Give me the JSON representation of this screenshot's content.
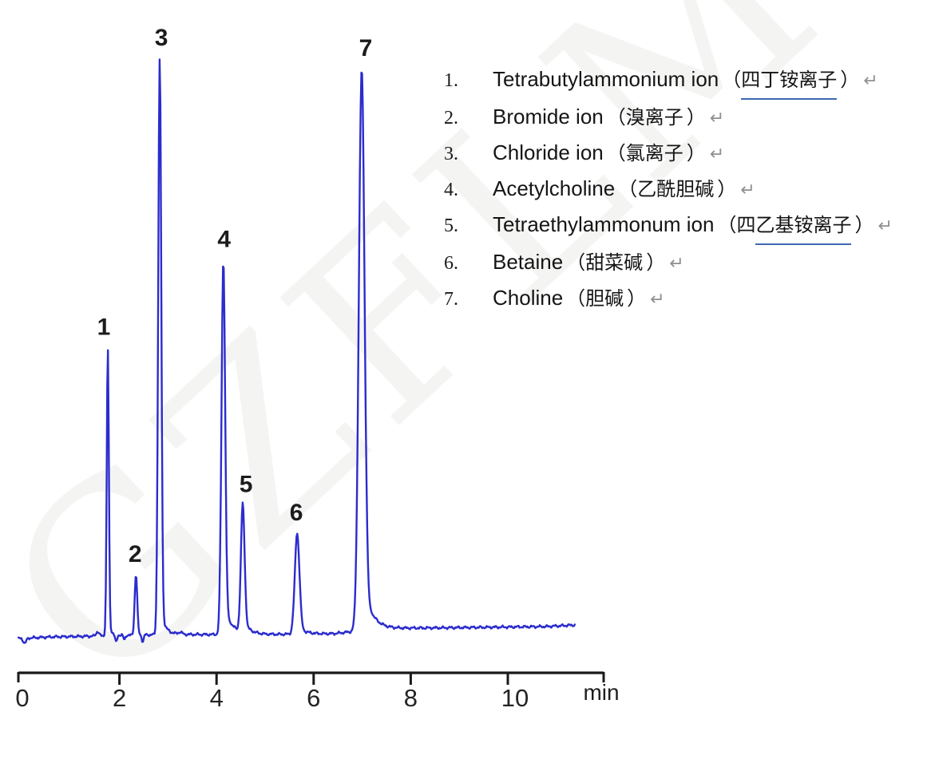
{
  "watermark": {
    "text": "GZFLM"
  },
  "legend": {
    "paren_open": "（",
    "paren_close": "）",
    "return_mark": "↵",
    "items": [
      {
        "num": "1.",
        "en": "Tetrabutylammonium ion",
        "zh_plain": "",
        "zh_underlined": "四丁铵离子"
      },
      {
        "num": "2.",
        "en": "Bromide ion",
        "zh_plain": "溴离子",
        "zh_underlined": ""
      },
      {
        "num": "3.",
        "en": "Chloride ion",
        "zh_plain": "氯离子",
        "zh_underlined": ""
      },
      {
        "num": "4.",
        "en": "Acetylcholine",
        "zh_plain": "乙酰胆碱",
        "zh_underlined": ""
      },
      {
        "num": "5.",
        "en": "Tetraethylammonum ion",
        "zh_plain": "四",
        "zh_underlined": "乙基铵离子"
      },
      {
        "num": "6.",
        "en": "Betaine",
        "zh_plain": "甜菜碱",
        "zh_underlined": ""
      },
      {
        "num": "7.",
        "en": "Choline",
        "zh_plain": "胆碱",
        "zh_underlined": ""
      }
    ]
  },
  "chart_data": {
    "type": "line",
    "title": "",
    "xlabel": "min",
    "ylabel": "",
    "x_ticks": [
      0,
      2,
      4,
      6,
      8,
      10
    ],
    "x_range": [
      -0.1,
      11.4
    ],
    "grid": false,
    "trace_color": "#2b2ccd",
    "axis_color": "#1a1a1a",
    "peak_label_color": "#1c1c1c",
    "series": [
      {
        "name": "conductivity-trace"
      }
    ],
    "peaks": [
      {
        "label": "1",
        "name": "Tetrabutylammonium ion",
        "rt_min": 1.76,
        "rel_height": 50,
        "sigma_min": 0.022,
        "tail_frac": 0.03,
        "tail_tau_min": 0.1
      },
      {
        "label": "2",
        "name": "Bromide ion",
        "rt_min": 2.34,
        "rel_height": 10.5,
        "sigma_min": 0.026,
        "tail_frac": 0.03,
        "tail_tau_min": 0.1
      },
      {
        "label": "3",
        "name": "Chloride ion",
        "rt_min": 2.83,
        "rel_height": 100,
        "sigma_min": 0.031,
        "tail_frac": 0.045,
        "tail_tau_min": 0.1
      },
      {
        "label": "4",
        "name": "Acetylcholine",
        "rt_min": 4.14,
        "rel_height": 65,
        "sigma_min": 0.038,
        "tail_frac": 0.08,
        "tail_tau_min": 0.16
      },
      {
        "label": "5",
        "name": "Tetraethylammonum ion",
        "rt_min": 4.54,
        "rel_height": 22.5,
        "sigma_min": 0.038,
        "tail_frac": 0.09,
        "tail_tau_min": 0.14
      },
      {
        "label": "6",
        "name": "Betaine",
        "rt_min": 5.66,
        "rel_height": 17.5,
        "sigma_min": 0.048,
        "tail_frac": 0.09,
        "tail_tau_min": 0.14
      },
      {
        "label": "7",
        "name": "Choline",
        "rt_min": 6.99,
        "rel_height": 97.5,
        "sigma_min": 0.058,
        "tail_frac": 0.1,
        "tail_tau_min": 0.17
      }
    ],
    "baseline_artifacts": [
      {
        "t": 0.05,
        "h": -0.9,
        "w": 0.03
      },
      {
        "t": 1.55,
        "h": 0.8,
        "w": 0.03
      },
      {
        "t": 1.93,
        "h": -1.4,
        "w": 0.022
      },
      {
        "t": 2.1,
        "h": -0.8,
        "w": 0.018
      },
      {
        "t": 2.48,
        "h": -1.2,
        "w": 0.02
      },
      {
        "t": 3.25,
        "h": 0.35,
        "w": 0.04
      }
    ]
  }
}
